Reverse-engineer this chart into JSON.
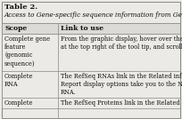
{
  "title": "Table 2.",
  "subtitle": "Access to Gene-specific sequence information from Gene.",
  "col_headers": [
    "Scope",
    "Link to use"
  ],
  "rows": [
    [
      "Complete gene\nfeature\n(genomic\nsequence)",
      "From the graphic display, hover over the bar indicatin\nat the top right of the tool tip, and scroll down. Links→"
    ],
    [
      "Complete\nRNA",
      "The RefSeq RNAs link in the Related information me\nReport display options take you to the Nucleotide dat\nRNA."
    ],
    [
      "Complete",
      "The RefSeq Proteins link in the Related information m→"
    ]
  ],
  "bg_color": "#eceae6",
  "table_bg": "#f5f4f1",
  "border_color": "#888888",
  "text_color": "#111111",
  "title_fontsize": 6.0,
  "subtitle_fontsize": 5.2,
  "header_fontsize": 5.5,
  "cell_fontsize": 4.8,
  "col_split": 0.315
}
